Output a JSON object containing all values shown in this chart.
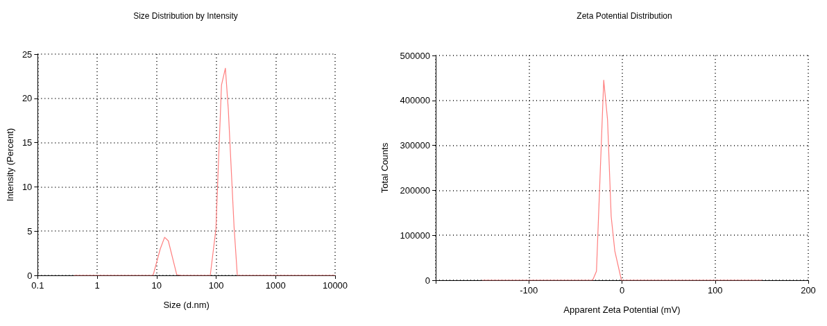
{
  "chart_data": [
    {
      "type": "line",
      "title": "Size Distribution by Intensity",
      "xlabel": "Size (d.nm)",
      "ylabel": "Intensity (Percent)",
      "log": "x",
      "xlim": [
        0.1,
        10000
      ],
      "xticks": [
        0.1,
        1,
        10,
        100,
        1000,
        10000
      ],
      "ylim": [
        0,
        25
      ],
      "yticks": [
        0,
        5,
        10,
        15,
        20,
        25
      ],
      "grid": true,
      "marker": "none",
      "series": [
        {
          "color": "#ff7f7f",
          "x": [
            0.41,
            8.7,
            11.5,
            13.6,
            15.7,
            21.7,
            25,
            79.6,
            99,
            123,
            143,
            160,
            200,
            227,
            10000
          ],
          "values": [
            0,
            0,
            3,
            4.3,
            3.9,
            0.1,
            0,
            0,
            5.2,
            21.5,
            23.4,
            18.8,
            5.5,
            0,
            0
          ]
        }
      ]
    },
    {
      "type": "line",
      "title": "Zeta Potential Distribution",
      "xlabel": "Apparent Zeta Potential (mV)",
      "ylabel": "Total Counts",
      "xlim": [
        -200,
        200
      ],
      "xticks": [
        {
          "value": -200,
          "label": null
        },
        -100,
        0,
        100,
        200
      ],
      "ylim": [
        0,
        500000
      ],
      "yticks": [
        0,
        100000,
        200000,
        300000,
        400000,
        500000
      ],
      "grid": true,
      "marker": "none",
      "series": [
        {
          "color": "#ff7f7f",
          "x": [
            -150,
            -31.5,
            -27.4,
            -19.6,
            -15.5,
            -11.6,
            -7.7,
            -0.6,
            150
          ],
          "values": [
            0,
            0,
            20000,
            445000,
            357000,
            142000,
            65000,
            0,
            0
          ]
        }
      ]
    }
  ]
}
